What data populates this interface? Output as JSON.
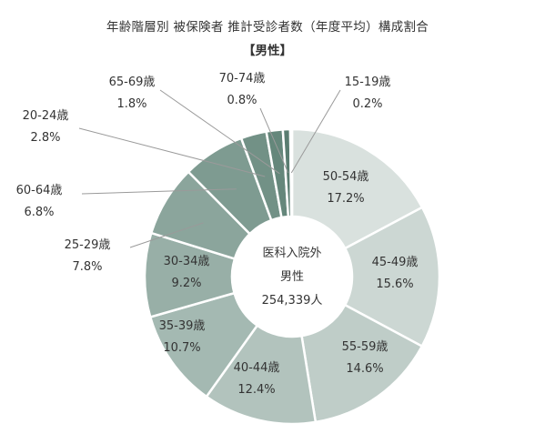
{
  "chart_data": {
    "type": "donut",
    "title": "年齢階層別 被保険者 推計受診者数（年度平均）構成割合",
    "subtitle": "【男性】",
    "center_label": [
      "医科入院外",
      "男性",
      "254,339人"
    ],
    "unit": "%",
    "slices": [
      {
        "label": "50-54歳",
        "value": 17.2,
        "value_text": "17.2%",
        "color": "#d9e1de"
      },
      {
        "label": "45-49歳",
        "value": 15.6,
        "value_text": "15.6%",
        "color": "#ccd7d3"
      },
      {
        "label": "55-59歳",
        "value": 14.6,
        "value_text": "14.6%",
        "color": "#bfcdc8"
      },
      {
        "label": "40-44歳",
        "value": 12.4,
        "value_text": "12.4%",
        "color": "#b2c3bd"
      },
      {
        "label": "35-39歳",
        "value": 10.7,
        "value_text": "10.7%",
        "color": "#a4b9b2"
      },
      {
        "label": "30-34歳",
        "value": 9.2,
        "value_text": "9.2%",
        "color": "#98afa7"
      },
      {
        "label": "25-29歳",
        "value": 7.8,
        "value_text": "7.8%",
        "color": "#8ba59c"
      },
      {
        "label": "60-64歳",
        "value": 6.8,
        "value_text": "6.8%",
        "color": "#7e9b91"
      },
      {
        "label": "20-24歳",
        "value": 2.8,
        "value_text": "2.8%",
        "color": "#729186"
      },
      {
        "label": "65-69歳",
        "value": 1.8,
        "value_text": "1.8%",
        "color": "#65877b"
      },
      {
        "label": "70-74歳",
        "value": 0.8,
        "value_text": "0.8%",
        "color": "#5a7d71"
      },
      {
        "label": "15-19歳",
        "value": 0.2,
        "value_text": "0.2%",
        "color": "#4e7366"
      }
    ]
  }
}
